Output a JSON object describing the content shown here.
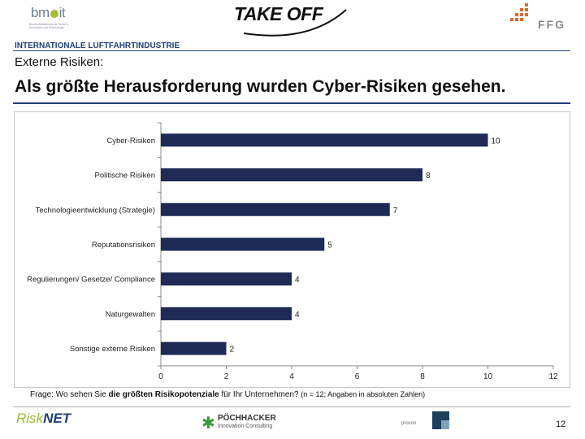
{
  "header": {
    "logo_bmvit": {
      "prefix": "bm",
      "suffix": "it",
      "subtext": "Bundesministerium für Verkehr, Innovation und Technologie"
    },
    "logo_takeoff": "TAKE OFF",
    "logo_ffg": "FFG",
    "organization": "INTERNATIONALE LUFTFAHRTINDUSTRIE",
    "subtitle": "Externe Risiken:",
    "headline": "Als größte Herausforderung wurden Cyber-Risiken gesehen."
  },
  "chart_data": {
    "type": "bar",
    "orientation": "horizontal",
    "categories": [
      "Cyber-Risiken",
      "Politische Risiken",
      "Technologieentwicklung (Strategie)",
      "Reputationsrisiken",
      "Regulierungen/ Gesetze/ Compliance",
      "Naturgewalten",
      "Sonstige externe Risiken"
    ],
    "values": [
      10,
      8,
      7,
      5,
      4,
      4,
      2
    ],
    "x_ticks": [
      0,
      2,
      4,
      6,
      8,
      10,
      12
    ],
    "xlim": [
      0,
      12
    ],
    "bar_color": "#1f2a55",
    "title": "",
    "xlabel": "",
    "ylabel": ""
  },
  "question": {
    "prefix": "Frage:  Wo sehen Sie ",
    "bold": "die größten Risikopotenziale",
    "middle": " für Ihr Unternehmen? ",
    "note": "(n = 12; Angaben in absoluten Zahlen)"
  },
  "footer": {
    "risknet_a": "Risk",
    "risknet_b": "NET",
    "poechhacker": "PÖCHHACKER",
    "poechhacker_sub": "Innovation Consulting",
    "procon": "procon",
    "page_number": "12"
  },
  "colors": {
    "brand_blue": "#1f3f7a",
    "bar": "#1f2a55",
    "accent_green": "#a3be32"
  }
}
